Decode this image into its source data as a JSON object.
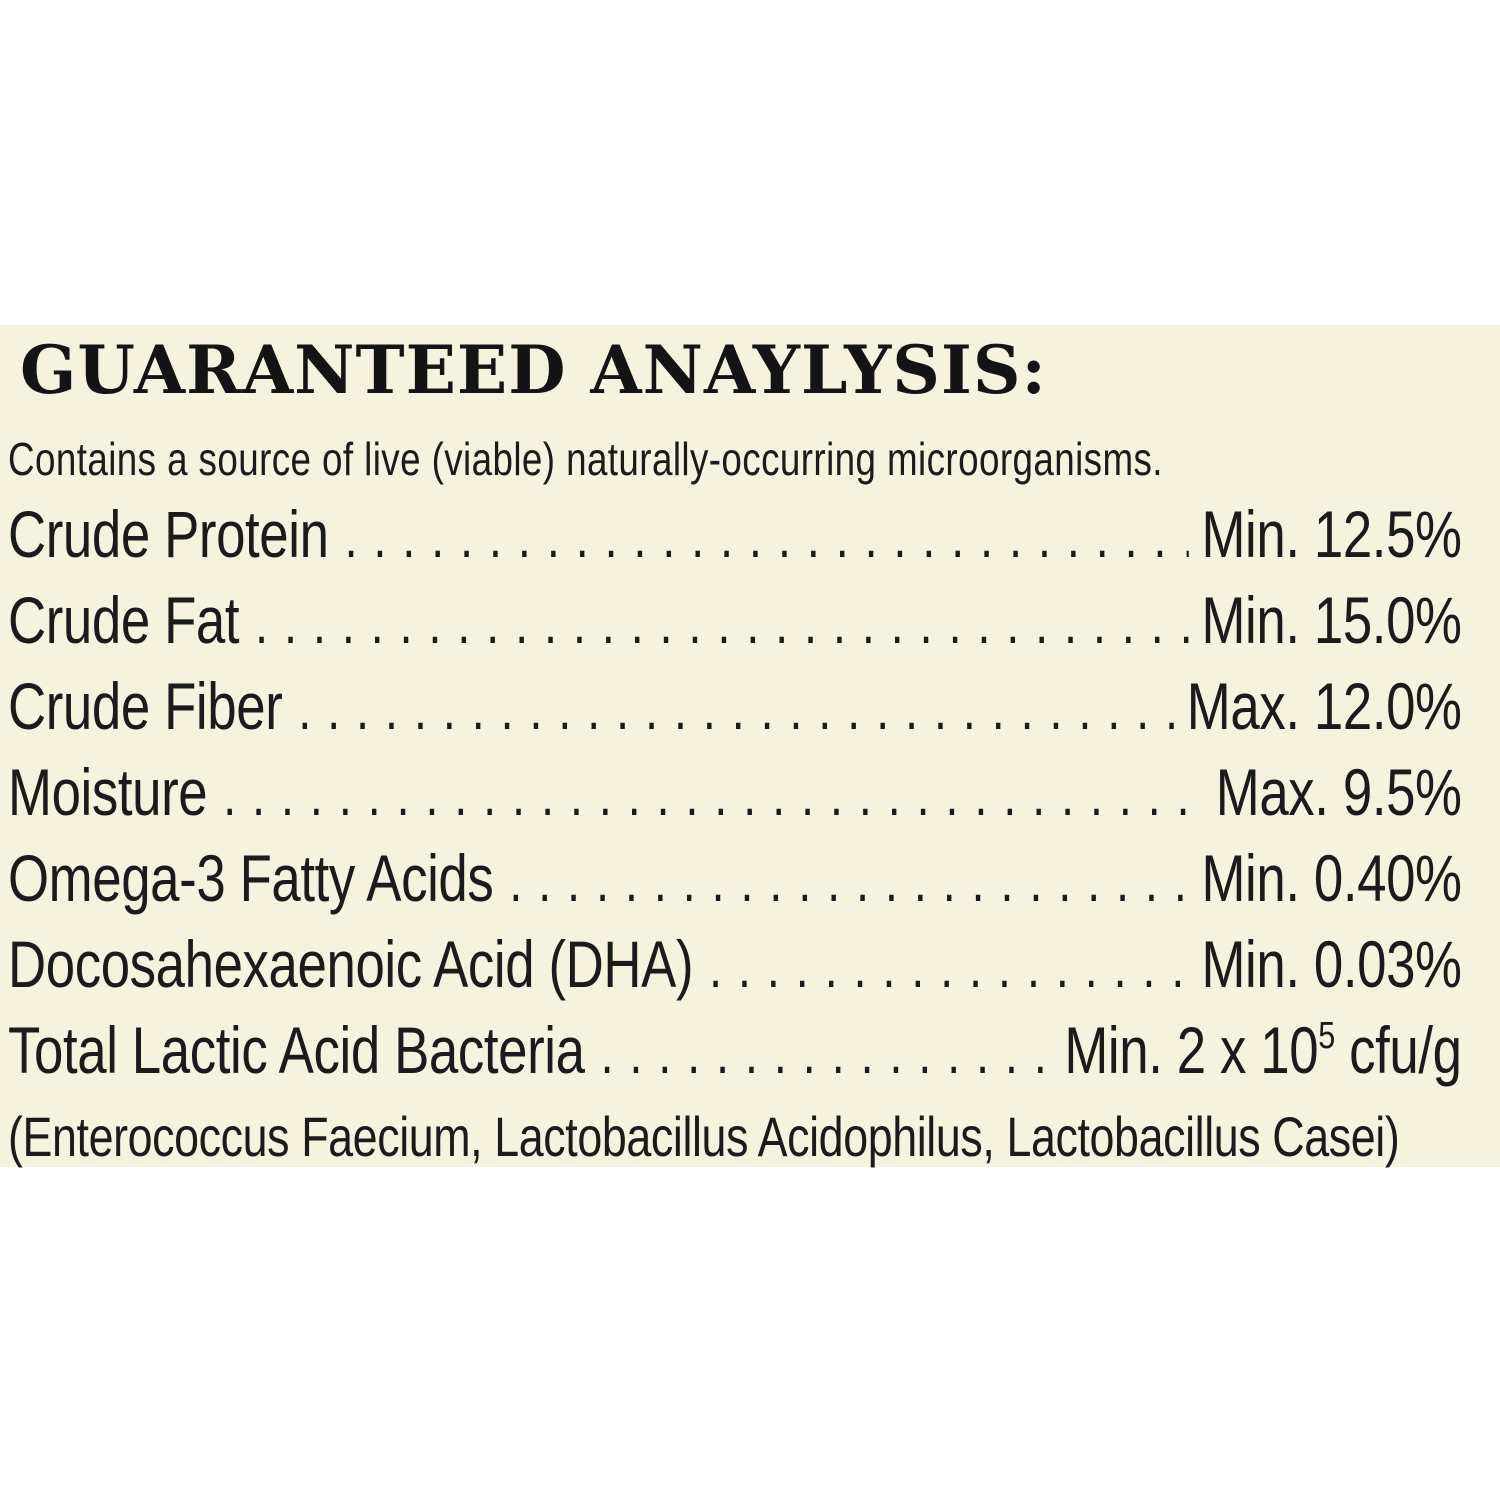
{
  "panel": {
    "title": "GUARANTEED ANAYLYSIS:",
    "subtitle": "Contains a source of live (viable) naturally-occurring microorganisms.",
    "rows": [
      {
        "label": "Crude Protein",
        "value": "Min. 12.5%"
      },
      {
        "label": "Crude Fat",
        "value": "Min. 15.0%"
      },
      {
        "label": "Crude Fiber",
        "value": "Max. 12.0%"
      },
      {
        "label": "Moisture",
        "value": "Max. 9.5%"
      },
      {
        "label": "Omega-3 Fatty Acids",
        "value": "Min. 0.40%"
      },
      {
        "label": "Docosahexaenoic Acid (DHA)",
        "value": "Min. 0.03%"
      },
      {
        "label": "Total Lactic Acid Bacteria",
        "value_prefix": "Min. 2 x 10",
        "value_sup": "5",
        "value_suffix": " cfu/g"
      }
    ],
    "footnote": "(Enterococcus Faecium, Lactobacillus Acidophilus, Lactobacillus Casei)",
    "colors": {
      "panel_bg": "#f5f3de",
      "text": "#1b1b1b",
      "page_bg": "#ffffff"
    }
  }
}
